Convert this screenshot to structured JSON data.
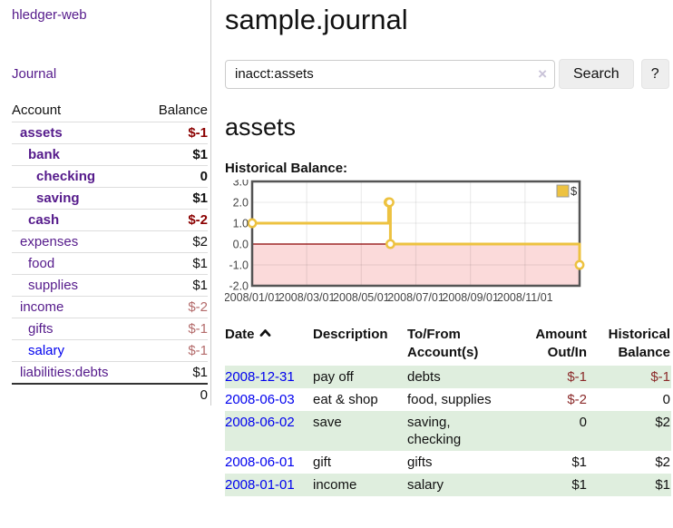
{
  "sidebar": {
    "brand": "hledger-web",
    "nav": {
      "journal_label": "Journal"
    },
    "accounts_table": {
      "headers": {
        "account": "Account",
        "balance": "Balance"
      },
      "rows": [
        {
          "name": "assets",
          "balance": "$-1"
        },
        {
          "name": "bank",
          "balance": "$1"
        },
        {
          "name": "checking",
          "balance": "0"
        },
        {
          "name": "saving",
          "balance": "$1"
        },
        {
          "name": "cash",
          "balance": "$-2"
        },
        {
          "name": "expenses",
          "balance": "$2"
        },
        {
          "name": "food",
          "balance": "$1"
        },
        {
          "name": "supplies",
          "balance": "$1"
        },
        {
          "name": "income",
          "balance": "$-2"
        },
        {
          "name": "gifts",
          "balance": "$-1"
        },
        {
          "name": "salary",
          "balance": "$-1"
        },
        {
          "name": "liabilities:debts",
          "balance": "$1"
        }
      ],
      "total": "0"
    }
  },
  "main": {
    "title": "sample.journal",
    "search": {
      "query": "inacct:assets",
      "clear_icon": "×",
      "button_label": "Search",
      "help_label": "?"
    },
    "account_heading": "assets",
    "chart_label": "Historical Balance:",
    "register": {
      "headers": {
        "date": "Date",
        "description": "Description",
        "tofrom": "To/From Account(s)",
        "amount": "Amount Out/In",
        "balance": "Historical Balance"
      },
      "rows": [
        {
          "date": "2008-12-31",
          "description": "pay off",
          "accounts": "debts",
          "amount": "$-1",
          "balance": "$-1"
        },
        {
          "date": "2008-06-03",
          "description": "eat & shop",
          "accounts": "food, supplies",
          "amount": "$-2",
          "balance": "0"
        },
        {
          "date": "2008-06-02",
          "description": "save",
          "accounts": "saving, checking",
          "amount": "0",
          "balance": "$2"
        },
        {
          "date": "2008-06-01",
          "description": "gift",
          "accounts": "gifts",
          "amount": "$1",
          "balance": "$2"
        },
        {
          "date": "2008-01-01",
          "description": "income",
          "accounts": "salary",
          "amount": "$1",
          "balance": "$1"
        }
      ]
    }
  },
  "chart_data": {
    "type": "line",
    "step": true,
    "title": "Historical Balance",
    "series": [
      {
        "name": "$",
        "color": "#EDC240",
        "points": [
          [
            "2008-01-01",
            1
          ],
          [
            "2008-06-01",
            2
          ],
          [
            "2008-06-02",
            2
          ],
          [
            "2008-06-03",
            0
          ],
          [
            "2008-12-31",
            -1
          ]
        ]
      }
    ],
    "x_start": "2008-01-01",
    "x_range_months": 12,
    "x_ticks": [
      "2008/01/01",
      "2008/03/01",
      "2008/05/01",
      "2008/07/01",
      "2008/09/01",
      "2008/11/01"
    ],
    "x_tick_months": [
      0,
      2,
      4,
      6,
      8,
      10
    ],
    "y_ticks": [
      3.0,
      2.0,
      1.0,
      0.0,
      -1.0,
      -2.0
    ],
    "ylim": [
      -2,
      3
    ],
    "grid": true,
    "legend_position": "top-right",
    "negative_region_color": "#fbdada",
    "zero_line_color": "#8b0000",
    "border_color": "#545454"
  }
}
